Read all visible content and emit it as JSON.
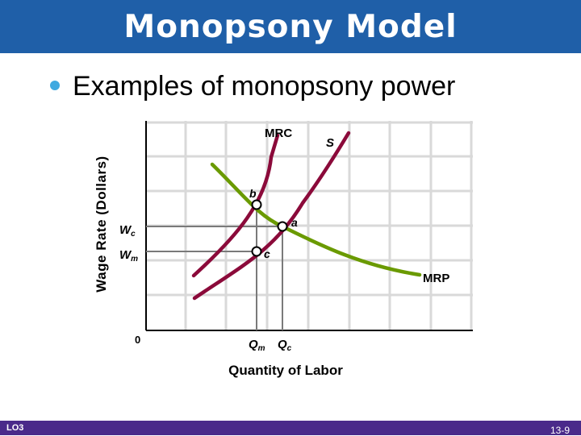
{
  "slide": {
    "title": "Monopsony Model",
    "bullet": "Examples of monopsony power",
    "footer_lo": "LO3",
    "page_number": "13-9"
  },
  "colors": {
    "title_bar": "#1f5fa8",
    "footer_bar": "#4a2a8a",
    "bullet": "#3fa9e0",
    "supply_curves": "#8b0a3a",
    "mrp_curve": "#6a9a00",
    "grid": "#d9d9d9"
  },
  "diagram": {
    "y_axis_label": "Wage Rate (Dollars)",
    "x_axis_label": "Quantity of Labor",
    "origin_label": "0",
    "curves": {
      "mrc": "MRC",
      "supply": "S",
      "mrp": "MRP"
    },
    "points": {
      "a": "a",
      "b": "b",
      "c": "c"
    },
    "wage_labels": {
      "wc_main": "W",
      "wc_sub": "c",
      "wm_main": "W",
      "wm_sub": "m"
    },
    "quantity_labels": {
      "qm_main": "Q",
      "qm_sub": "m",
      "qc_main": "Q",
      "qc_sub": "c"
    }
  }
}
